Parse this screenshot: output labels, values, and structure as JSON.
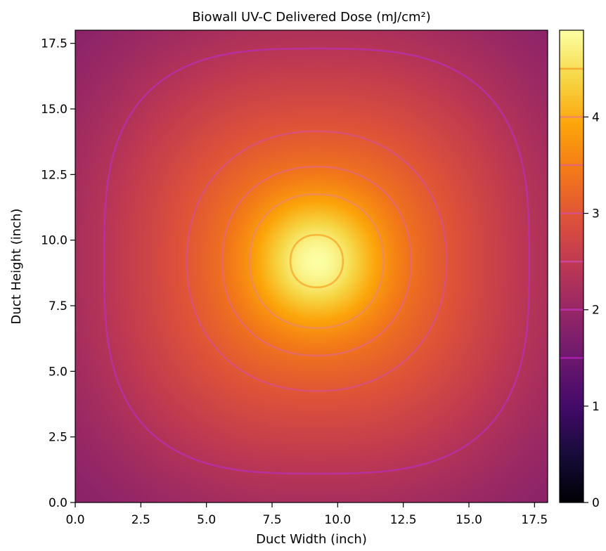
{
  "chart_data": {
    "type": "heatmap",
    "title": "Biowall UV-C Delivered Dose (mJ/cm²)",
    "xlabel": "Duct Width (inch)",
    "ylabel": "Duct Height (inch)",
    "xlim": [
      0,
      18
    ],
    "ylim": [
      0,
      18
    ],
    "x_ticks": [
      0,
      2.5,
      5,
      7.5,
      10,
      12.5,
      15,
      17.5
    ],
    "x_tick_labels": [
      "0.0",
      "2.5",
      "5.0",
      "7.5",
      "10.0",
      "12.5",
      "15.0",
      "17.5"
    ],
    "y_ticks": [
      0,
      2.5,
      5,
      7.5,
      10,
      12.5,
      15,
      17.5
    ],
    "y_tick_labels": [
      "0.0",
      "2.5",
      "5.0",
      "7.5",
      "10.0",
      "12.5",
      "15.0",
      "17.5"
    ],
    "colormap": "inferno",
    "colorbar": {
      "min": 0,
      "max": 4.9,
      "ticks": [
        0,
        1,
        2,
        3,
        4
      ],
      "tick_labels": [
        "0",
        "1",
        "2",
        "3",
        "4"
      ],
      "contour_levels_marked": [
        1.5,
        2.0,
        2.5,
        3.0,
        3.5,
        4.0,
        4.5
      ]
    },
    "peak": {
      "x": 9.2,
      "y": 9.2,
      "value": 4.9
    },
    "corner_value": 1.55,
    "contours": [
      {
        "level": 2.0,
        "half_extent": 8.1,
        "color": "#b830a6"
      },
      {
        "level": 3.0,
        "half_extent": 4.95,
        "color": "#d8507e"
      },
      {
        "level": 3.5,
        "half_extent": 3.6,
        "color": "#e4686e"
      },
      {
        "level": 4.0,
        "half_extent": 2.55,
        "color": "#ee8a5c"
      },
      {
        "level": 4.5,
        "half_extent": 1.0,
        "color": "#f7ae30"
      }
    ]
  }
}
